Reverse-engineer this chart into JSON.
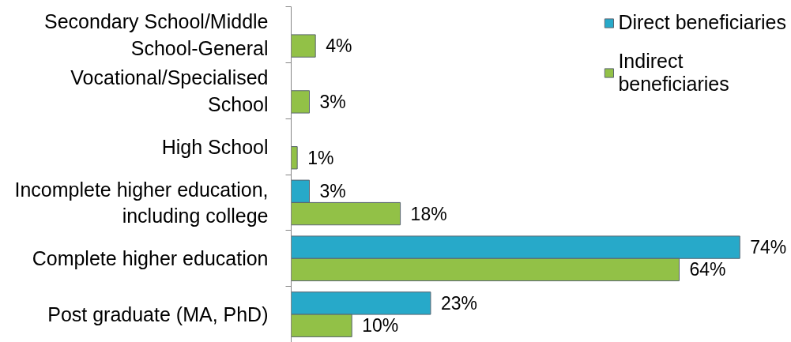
{
  "chart_data": {
    "type": "bar",
    "orientation": "horizontal",
    "categories": [
      "Secondary School/Middle School-General",
      "Vocational/Specialised School",
      "High School",
      "Incomplete higher education, including college",
      "Complete higher education",
      "Post graduate (MA, PhD)"
    ],
    "series": [
      {
        "name": "Direct beneficiaries",
        "color": "#27a9c9",
        "values": [
          null,
          null,
          null,
          3,
          74,
          23
        ],
        "value_labels": [
          null,
          null,
          null,
          "3%",
          "74%",
          "23%"
        ]
      },
      {
        "name": "Indirect beneficiaries",
        "color": "#92c147",
        "values": [
          4,
          3,
          1,
          18,
          64,
          10
        ],
        "value_labels": [
          "4%",
          "3%",
          "1%",
          "18%",
          "64%",
          "10%"
        ]
      }
    ],
    "legend": "top right",
    "tick_labels": "y"
  }
}
